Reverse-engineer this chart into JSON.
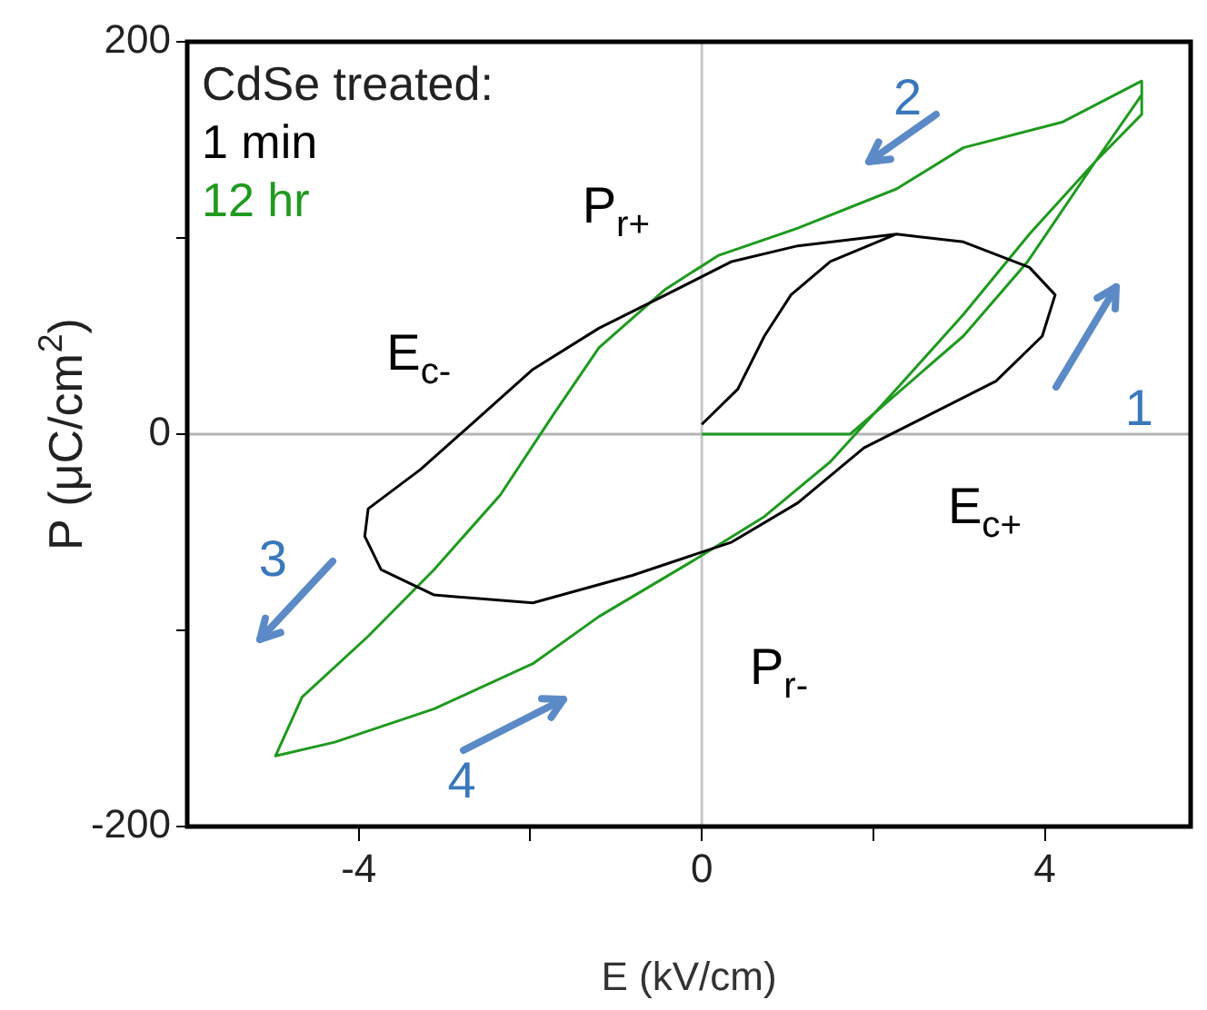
{
  "chart_data": {
    "type": "line",
    "xlabel": "E (kV/cm)",
    "ylabel": "P (μC/cm$^{2}$)",
    "legend_title": "CdSe treated:",
    "legend": "top left",
    "xlim": [
      -6,
      5.7
    ],
    "xticks": [
      -4,
      {
        "value": -2,
        "label": null
      },
      0,
      {
        "value": 2,
        "label": null
      },
      4
    ],
    "ylim": [
      -200,
      200
    ],
    "yticks": [
      -200,
      {
        "value": -100,
        "label": null
      },
      0,
      {
        "value": 100,
        "label": null
      },
      200
    ],
    "series": [
      {
        "name": "1 min",
        "color": "#000000",
        "x": [
          0,
          0.42,
          0.73,
          1.04,
          1.5,
          2.27,
          3.05,
          3.82,
          4.12,
          3.97,
          3.43,
          2.66,
          1.89,
          1.12,
          0.35,
          -0.81,
          -1.97,
          -3.12,
          -3.74,
          -3.93,
          -3.89,
          -3.28,
          -2.74,
          -1.97,
          -1.2,
          -0.42,
          0.35,
          1.12,
          2.27
        ],
        "values": [
          5,
          23,
          50,
          71,
          88,
          102,
          98,
          85,
          71,
          50,
          27,
          10,
          -7,
          -35,
          -55,
          -72,
          -86,
          -82,
          -69,
          -52,
          -38,
          -18,
          3,
          33,
          54,
          71,
          88,
          96,
          102
        ]
      },
      {
        "name": "12 hr",
        "color": "#1f9a1f",
        "x": [
          0,
          1.73,
          3.05,
          3.8,
          4.59,
          5.13,
          5.13,
          4.2,
          3.05,
          2.27,
          1.12,
          0.19,
          -0.42,
          -1.2,
          -1.73,
          -2.35,
          -3.12,
          -3.89,
          -4.66,
          -4.97,
          -4.28,
          -3.12,
          -1.97,
          -1.2,
          -0.12,
          0.73,
          1.5,
          2.27,
          3.05,
          3.82,
          4.59,
          5.13
        ],
        "values": [
          0,
          0,
          50,
          88,
          139,
          163,
          180,
          159,
          146,
          125,
          105,
          91,
          74,
          44,
          10,
          -31,
          -69,
          -103,
          -134,
          -164,
          -157,
          -140,
          -117,
          -93,
          -65,
          -42,
          -14,
          23,
          61,
          102,
          139,
          173
        ]
      }
    ],
    "ref_lines": [
      {
        "axis": "x",
        "value": 0,
        "color": "#c8c8c8"
      },
      {
        "axis": "y",
        "value": 0,
        "color": "#b4b4b4"
      }
    ],
    "annotations": [
      "P$_{r+}$",
      "E$_{c-}$",
      "E$_{c+}$",
      "P$_{r-}$",
      "1",
      "2",
      "3",
      "4"
    ]
  }
}
